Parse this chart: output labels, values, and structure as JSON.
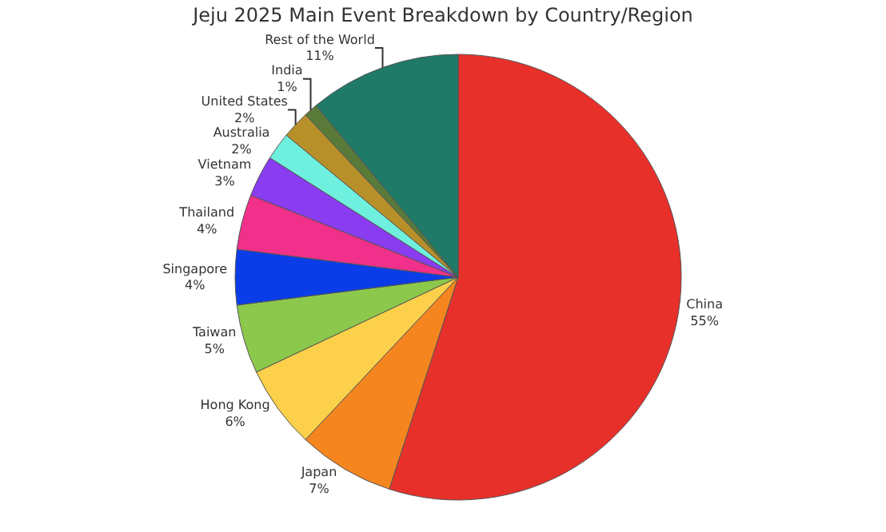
{
  "chart_data": {
    "type": "pie",
    "title": "Jeju 2025 Main Event Breakdown by Country/Region",
    "categories": [
      "China",
      "Japan",
      "Hong Kong",
      "Taiwan",
      "Singapore",
      "Thailand",
      "Vietnam",
      "Australia",
      "United States",
      "India",
      "Rest of the World"
    ],
    "values": [
      55,
      7,
      6,
      5,
      4,
      4,
      3,
      2,
      2,
      1,
      11
    ],
    "colors": [
      "#e8302a",
      "#f5861f",
      "#fcd04a",
      "#8cc84b",
      "#0a3de8",
      "#f0308a",
      "#8a3cf0",
      "#6ff0de",
      "#b8902a",
      "#5a7a3a",
      "#207a68"
    ],
    "value_labels": [
      "55%",
      "7%",
      "6%",
      "5%",
      "4%",
      "4%",
      "3%",
      "2%",
      "2%",
      "1%",
      "11%"
    ],
    "legend": false
  }
}
